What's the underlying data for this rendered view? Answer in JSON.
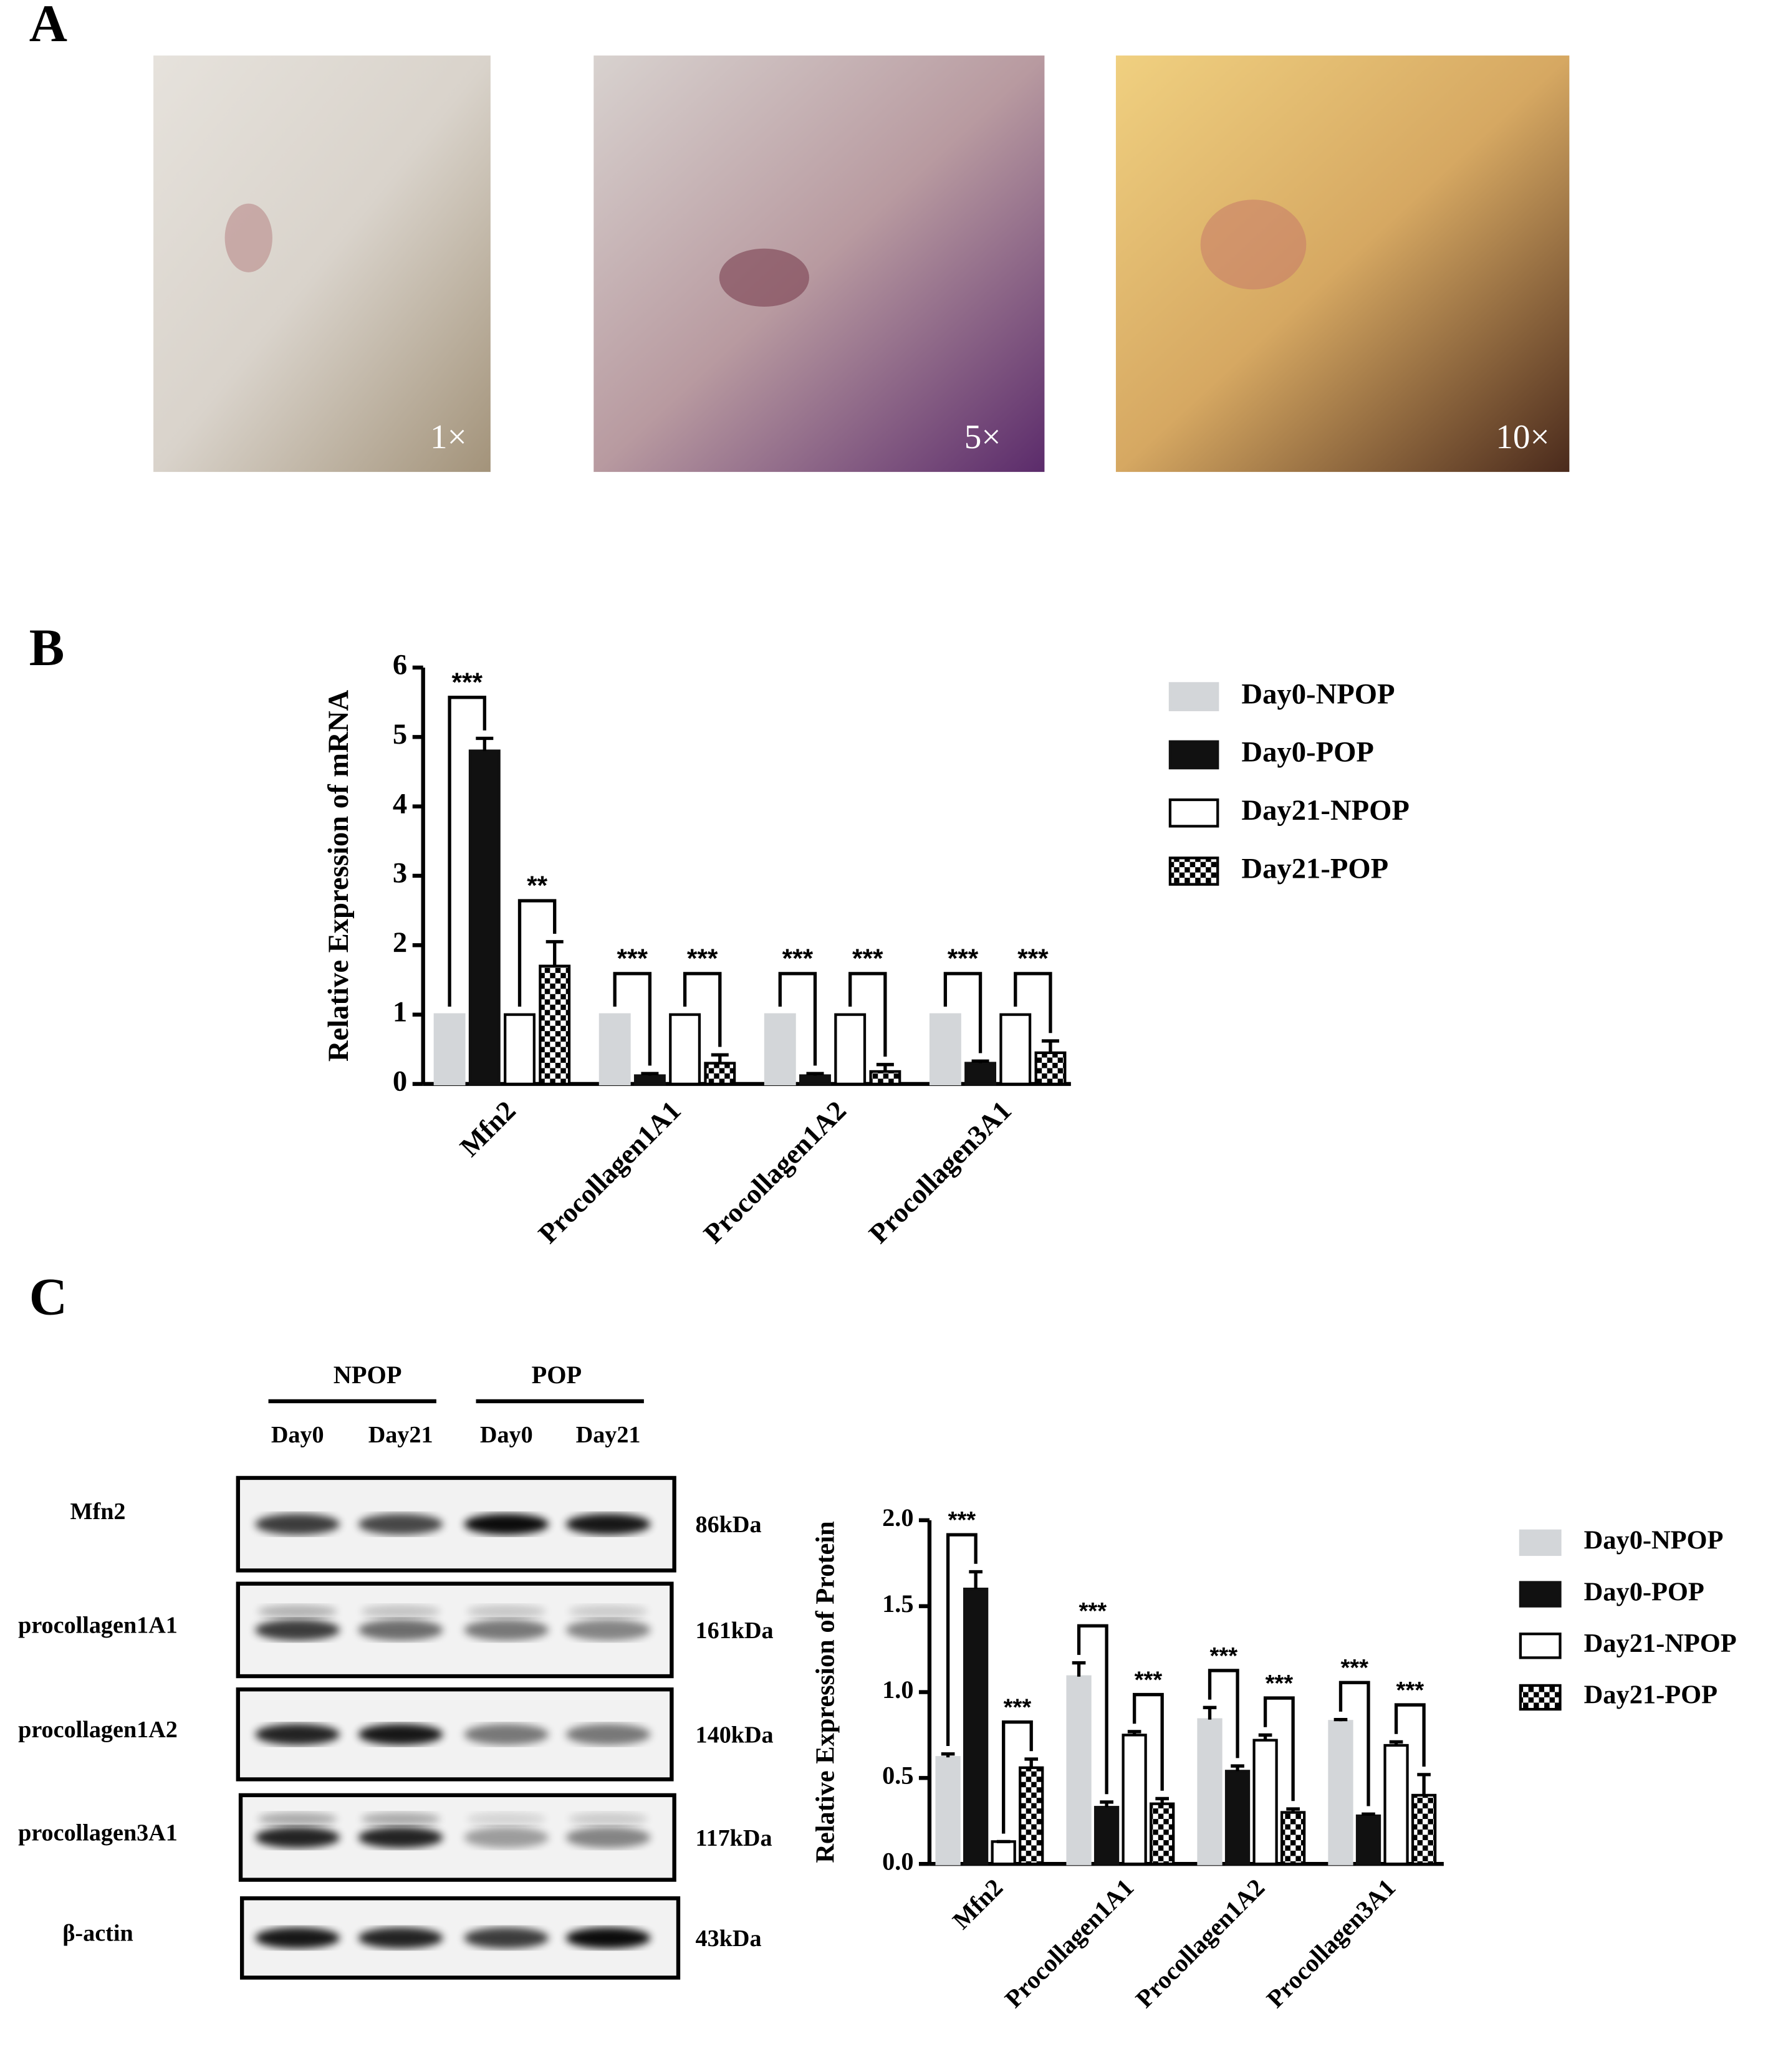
{
  "panel_labels": [
    "A",
    "B",
    "C"
  ],
  "photos": [
    {
      "label": "1×"
    },
    {
      "label": "5×"
    },
    {
      "label": "10×"
    }
  ],
  "blot": {
    "groups": [
      "NPOP",
      "POP"
    ],
    "lanes": [
      "Day0",
      "Day21",
      "Day0",
      "Day21"
    ],
    "rows": [
      {
        "protein": "Mfn2",
        "size": "86kDa"
      },
      {
        "protein": "procollagen1A1",
        "size": "161kDa"
      },
      {
        "protein": "procollagen1A2",
        "size": "140kDa"
      },
      {
        "protein": "procollagen3A1",
        "size": "117kDa"
      },
      {
        "protein": "β-actin",
        "size": "43kDa"
      }
    ]
  },
  "chart_data": [
    {
      "type": "bar",
      "y_label": "Relative Expression of mRNA",
      "categories": [
        "Mfn2",
        "Procollagen1A1",
        "Procollagen1A2",
        "Procollagen3A1"
      ],
      "series": [
        {
          "name": "Day0-NPOP",
          "color": "#d3d6d9",
          "values": [
            1,
            1,
            1,
            1
          ]
        },
        {
          "name": "Day0-POP",
          "color": "#111111",
          "values": [
            4.8,
            0.12,
            0.12,
            0.3
          ],
          "errors": [
            0.18,
            0.03,
            0.03,
            0.03
          ]
        },
        {
          "name": "Day21-NPOP",
          "color": "#ffffff",
          "values": [
            1,
            1,
            1,
            1
          ]
        },
        {
          "name": "Day21-POP",
          "color": "#000000",
          "pattern": "checkerboard",
          "values": [
            1.7,
            0.3,
            0.18,
            0.45
          ],
          "errors": [
            0.35,
            0.12,
            0.1,
            0.17
          ]
        }
      ],
      "ylim": [
        0,
        6
      ],
      "yticks": [
        0,
        1,
        2,
        3,
        4,
        5,
        6
      ],
      "annotations": [
        "***",
        "**",
        "***",
        "***",
        "***",
        "***",
        "***",
        "***"
      ]
    },
    {
      "type": "bar",
      "y_label": "Relative Expression of Protein",
      "categories": [
        "Mfn2",
        "Procollagen1A1",
        "Procollagen1A2",
        "Procollagen3A1"
      ],
      "series": [
        {
          "name": "Day0-NPOP",
          "color": "#d3d6d9",
          "values": [
            0.62,
            1.09,
            0.84,
            0.83
          ],
          "errors": [
            0.02,
            0.08,
            0.07,
            0.01
          ]
        },
        {
          "name": "Day0-POP",
          "color": "#111111",
          "values": [
            1.6,
            0.33,
            0.54,
            0.28
          ],
          "errors": [
            0.1,
            0.03,
            0.03,
            0.01
          ]
        },
        {
          "name": "Day21-NPOP",
          "color": "#ffffff",
          "values": [
            0.13,
            0.75,
            0.72,
            0.69
          ],
          "errors": [
            0,
            0.02,
            0.03,
            0.02
          ]
        },
        {
          "name": "Day21-POP",
          "color": "#000000",
          "pattern": "checkerboard",
          "values": [
            0.56,
            0.35,
            0.3,
            0.4
          ],
          "errors": [
            0.05,
            0.03,
            0.02,
            0.12
          ]
        }
      ],
      "ylim": [
        0,
        2
      ],
      "yticks": [
        {
          "value": 0,
          "label": "0.0"
        },
        0.5,
        {
          "value": 1,
          "label": "1.0"
        },
        1.5,
        {
          "value": 2,
          "label": "2.0"
        }
      ],
      "annotations": [
        "***",
        "***",
        "***",
        "***",
        "***",
        "***",
        "***",
        "***"
      ]
    }
  ]
}
